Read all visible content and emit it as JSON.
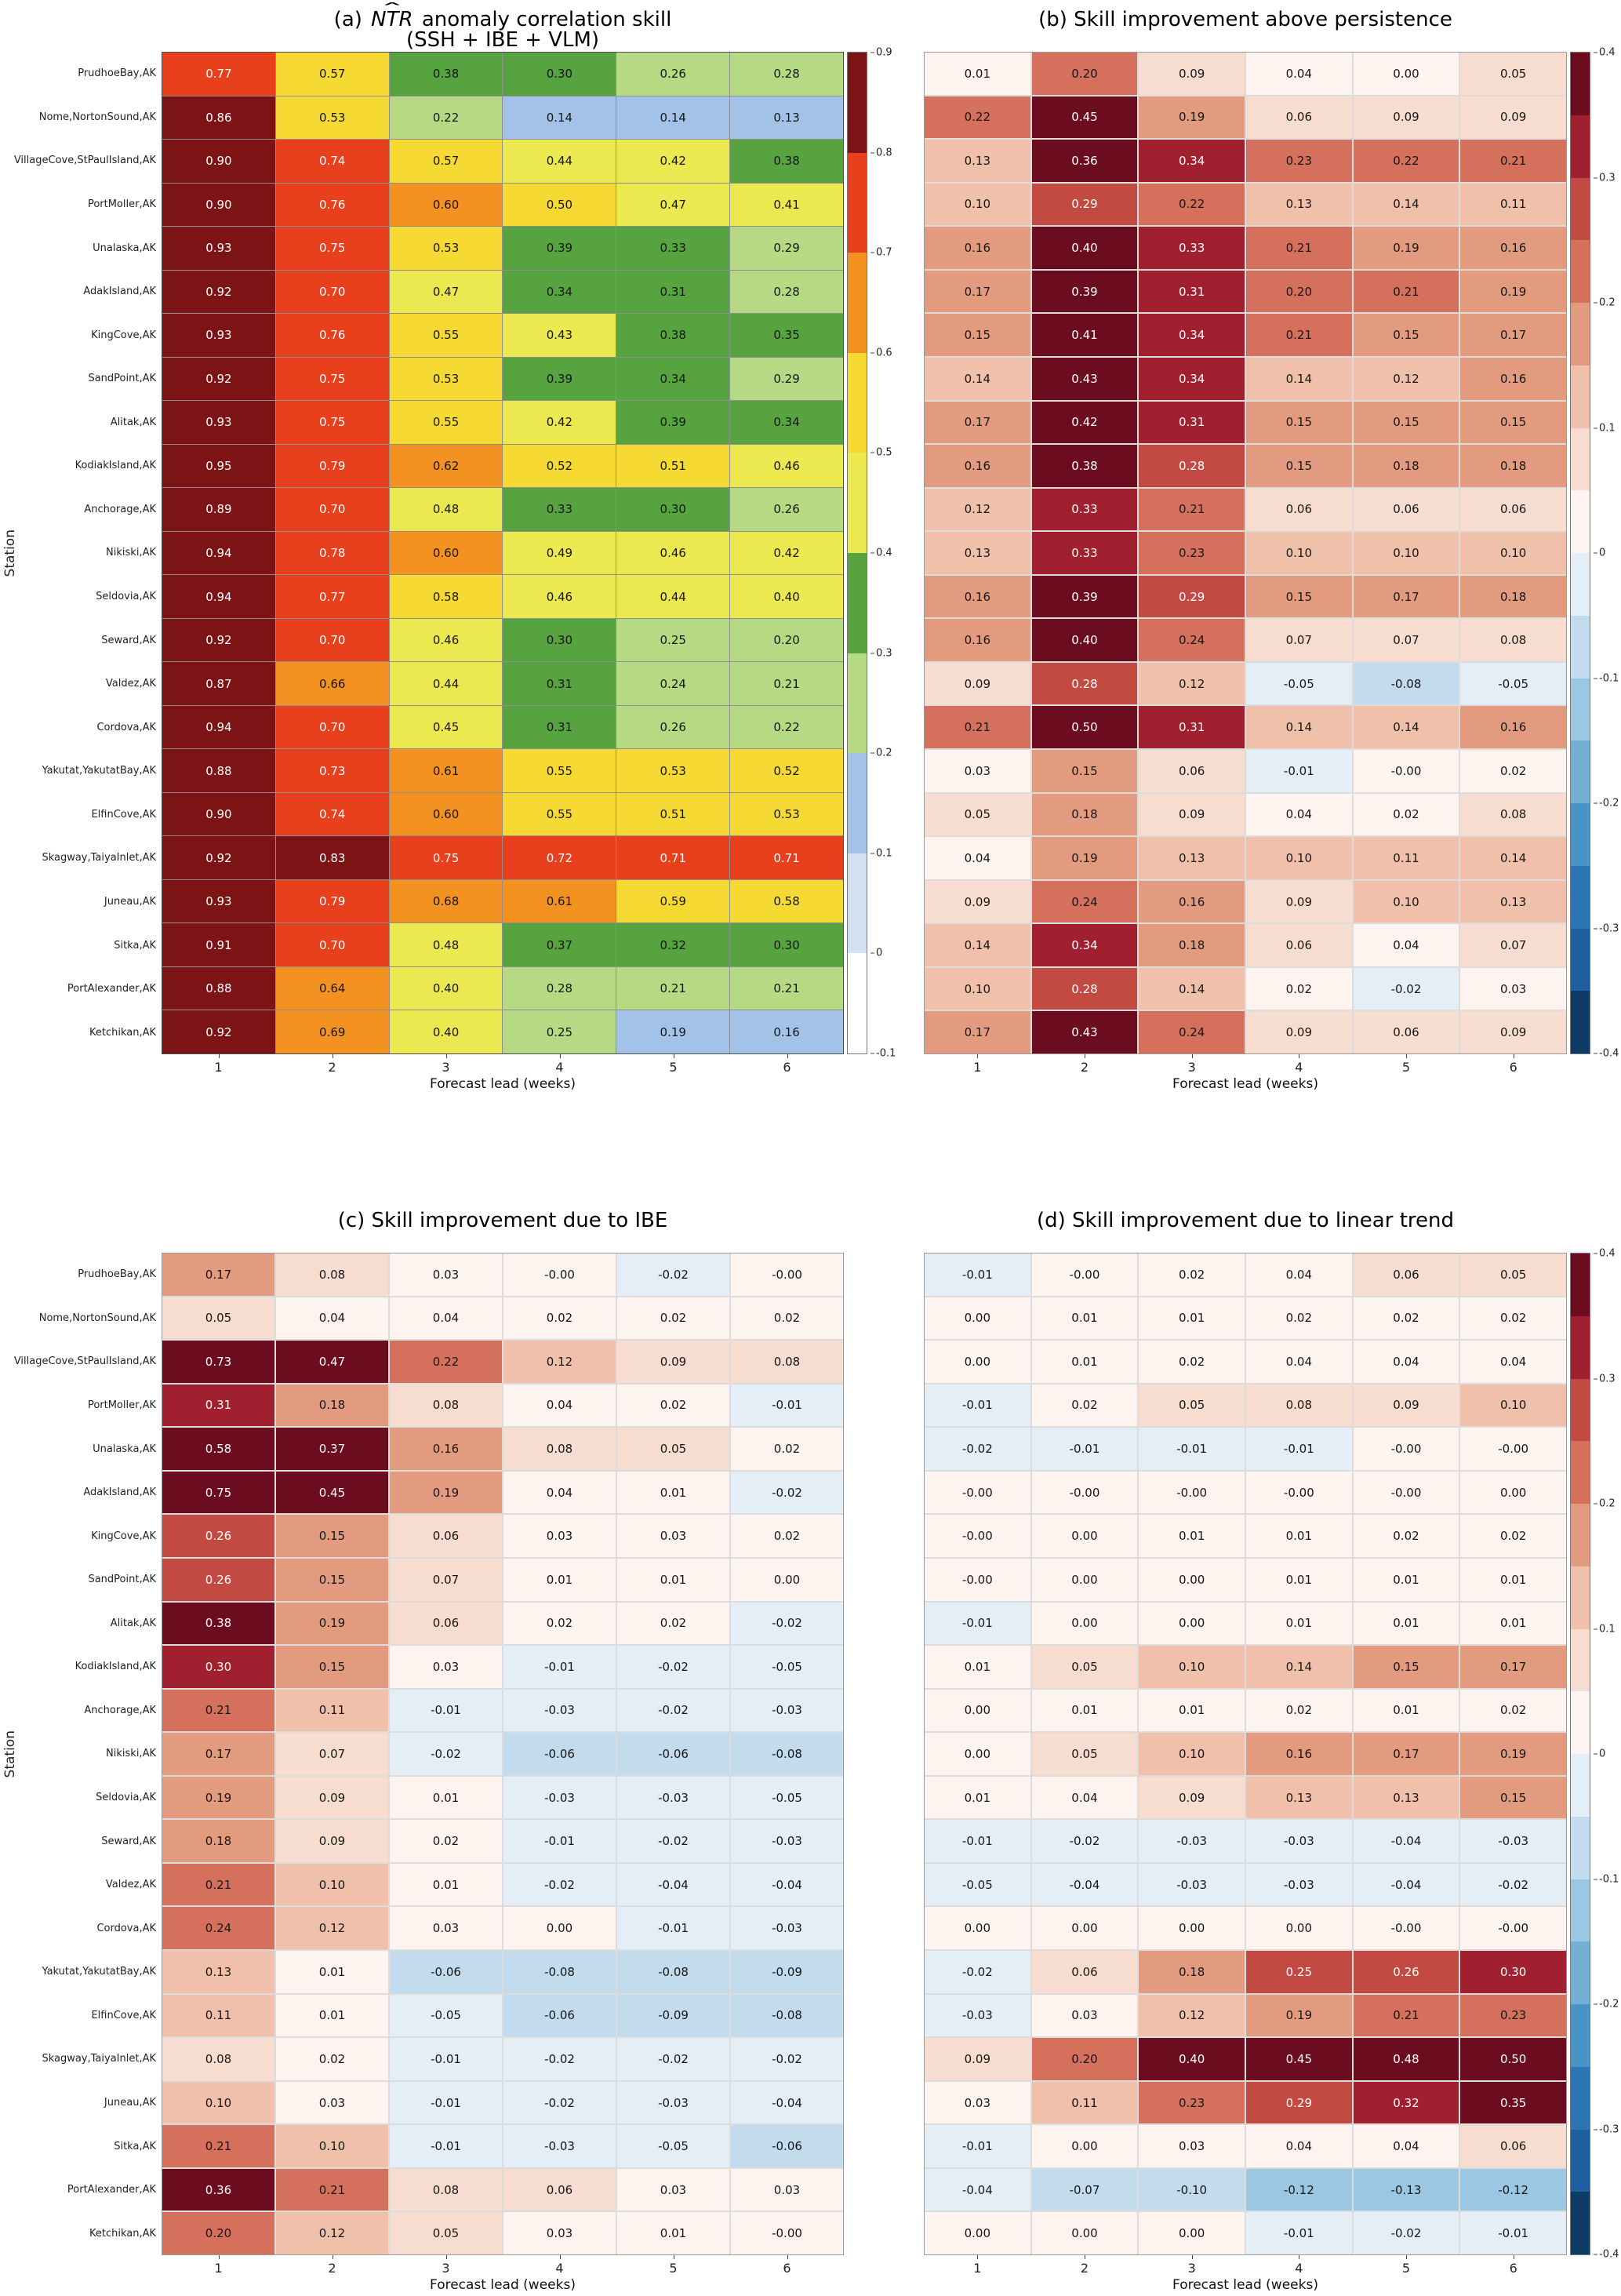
{
  "chart_data": {
    "type": "heatmap",
    "x": [
      "1",
      "2",
      "3",
      "4",
      "5",
      "6"
    ],
    "xlabel": "Forecast lead (weeks)",
    "ylabel": "Station",
    "stations": [
      "PrudhoeBay,AK",
      "Nome,NortonSound,AK",
      "VillageCove,StPaulIsland,AK",
      "PortMoller,AK",
      "Unalaska,AK",
      "AdakIsland,AK",
      "KingCove,AK",
      "SandPoint,AK",
      "Alitak,AK",
      "KodiakIsland,AK",
      "Anchorage,AK",
      "Nikiski,AK",
      "Seldovia,AK",
      "Seward,AK",
      "Valdez,AK",
      "Cordova,AK",
      "Yakutat,YakutatBay,AK",
      "ElfinCove,AK",
      "Skagway,TaiyaInlet,AK",
      "Juneau,AK",
      "Sitka,AK",
      "PortAlexander,AK",
      "Ketchikan,AK"
    ],
    "palettes": {
      "skill": {
        "vmin": -0.1,
        "step": 0.1,
        "colors": [
          "#ffffff",
          "#d3e1f3",
          "#a3c2e8",
          "#b6d983",
          "#56a33f",
          "#ece850",
          "#f6d932",
          "#f39121",
          "#e83f1d",
          "#7c1416"
        ]
      },
      "diverging": {
        "vmin": -0.4,
        "step": 0.05,
        "colors": [
          "#0d3b66",
          "#1f5fa0",
          "#2e75b5",
          "#4a93c8",
          "#74afd4",
          "#9cc7e2",
          "#c2dcee",
          "#e3eef7",
          "#fdf4ef",
          "#f6ddd0",
          "#f0c0ab",
          "#e39b80",
          "#d4705c",
          "#c24a42",
          "#a02030",
          "#6b0d1e"
        ]
      }
    },
    "panels": [
      {
        "id": "a",
        "title_prefix": "(a) ",
        "title_math": "NTR",
        "title_suffix": " anomaly correlation skill",
        "subtitle": "(SSH + IBE + VLM)",
        "cmap": "skill",
        "colorbar": true,
        "cbar_ticks": [
          "0.9",
          "0.8",
          "0.7",
          "0.6",
          "0.5",
          "0.4",
          "0.3",
          "0.2",
          "0.1",
          "0",
          "-0.1"
        ],
        "values": [
          [
            "0.77",
            "0.57",
            "0.38",
            "0.30",
            "0.26",
            "0.28"
          ],
          [
            "0.86",
            "0.53",
            "0.22",
            "0.14",
            "0.14",
            "0.13"
          ],
          [
            "0.90",
            "0.74",
            "0.57",
            "0.44",
            "0.42",
            "0.38"
          ],
          [
            "0.90",
            "0.76",
            "0.60",
            "0.50",
            "0.47",
            "0.41"
          ],
          [
            "0.93",
            "0.75",
            "0.53",
            "0.39",
            "0.33",
            "0.29"
          ],
          [
            "0.92",
            "0.70",
            "0.47",
            "0.34",
            "0.31",
            "0.28"
          ],
          [
            "0.93",
            "0.76",
            "0.55",
            "0.43",
            "0.38",
            "0.35"
          ],
          [
            "0.92",
            "0.75",
            "0.53",
            "0.39",
            "0.34",
            "0.29"
          ],
          [
            "0.93",
            "0.75",
            "0.55",
            "0.42",
            "0.39",
            "0.34"
          ],
          [
            "0.95",
            "0.79",
            "0.62",
            "0.52",
            "0.51",
            "0.46"
          ],
          [
            "0.89",
            "0.70",
            "0.48",
            "0.33",
            "0.30",
            "0.26"
          ],
          [
            "0.94",
            "0.78",
            "0.60",
            "0.49",
            "0.46",
            "0.42"
          ],
          [
            "0.94",
            "0.77",
            "0.58",
            "0.46",
            "0.44",
            "0.40"
          ],
          [
            "0.92",
            "0.70",
            "0.46",
            "0.30",
            "0.25",
            "0.20"
          ],
          [
            "0.87",
            "0.66",
            "0.44",
            "0.31",
            "0.24",
            "0.21"
          ],
          [
            "0.94",
            "0.70",
            "0.45",
            "0.31",
            "0.26",
            "0.22"
          ],
          [
            "0.88",
            "0.73",
            "0.61",
            "0.55",
            "0.53",
            "0.52"
          ],
          [
            "0.90",
            "0.74",
            "0.60",
            "0.55",
            "0.51",
            "0.53"
          ],
          [
            "0.92",
            "0.83",
            "0.75",
            "0.72",
            "0.71",
            "0.71"
          ],
          [
            "0.93",
            "0.79",
            "0.68",
            "0.61",
            "0.59",
            "0.58"
          ],
          [
            "0.91",
            "0.70",
            "0.48",
            "0.37",
            "0.32",
            "0.30"
          ],
          [
            "0.88",
            "0.64",
            "0.40",
            "0.28",
            "0.21",
            "0.21"
          ],
          [
            "0.92",
            "0.69",
            "0.40",
            "0.25",
            "0.19",
            "0.16"
          ]
        ]
      },
      {
        "id": "b",
        "title": "(b) Skill improvement above persistence",
        "cmap": "diverging",
        "colorbar": true,
        "cbar_ticks": [
          "0.4",
          "0.3",
          "0.2",
          "0.1",
          "0",
          "-0.1",
          "-0.2",
          "-0.3",
          "-0.4"
        ],
        "values": [
          [
            "0.01",
            "0.20",
            "0.09",
            "0.04",
            "0.00",
            "0.05"
          ],
          [
            "0.22",
            "0.45",
            "0.19",
            "0.06",
            "0.09",
            "0.09"
          ],
          [
            "0.13",
            "0.36",
            "0.34",
            "0.23",
            "0.22",
            "0.21"
          ],
          [
            "0.10",
            "0.29",
            "0.22",
            "0.13",
            "0.14",
            "0.11"
          ],
          [
            "0.16",
            "0.40",
            "0.33",
            "0.21",
            "0.19",
            "0.16"
          ],
          [
            "0.17",
            "0.39",
            "0.31",
            "0.20",
            "0.21",
            "0.19"
          ],
          [
            "0.15",
            "0.41",
            "0.34",
            "0.21",
            "0.15",
            "0.17"
          ],
          [
            "0.14",
            "0.43",
            "0.34",
            "0.14",
            "0.12",
            "0.16"
          ],
          [
            "0.17",
            "0.42",
            "0.31",
            "0.15",
            "0.15",
            "0.15"
          ],
          [
            "0.16",
            "0.38",
            "0.28",
            "0.15",
            "0.18",
            "0.18"
          ],
          [
            "0.12",
            "0.33",
            "0.21",
            "0.06",
            "0.06",
            "0.06"
          ],
          [
            "0.13",
            "0.33",
            "0.23",
            "0.10",
            "0.10",
            "0.10"
          ],
          [
            "0.16",
            "0.39",
            "0.29",
            "0.15",
            "0.17",
            "0.18"
          ],
          [
            "0.16",
            "0.40",
            "0.24",
            "0.07",
            "0.07",
            "0.08"
          ],
          [
            "0.09",
            "0.28",
            "0.12",
            "-0.05",
            "-0.08",
            "-0.05"
          ],
          [
            "0.21",
            "0.50",
            "0.31",
            "0.14",
            "0.14",
            "0.16"
          ],
          [
            "0.03",
            "0.15",
            "0.06",
            "-0.01",
            "-0.00",
            "0.02"
          ],
          [
            "0.05",
            "0.18",
            "0.09",
            "0.04",
            "0.02",
            "0.08"
          ],
          [
            "0.04",
            "0.19",
            "0.13",
            "0.10",
            "0.11",
            "0.14"
          ],
          [
            "0.09",
            "0.24",
            "0.16",
            "0.09",
            "0.10",
            "0.13"
          ],
          [
            "0.14",
            "0.34",
            "0.18",
            "0.06",
            "0.04",
            "0.07"
          ],
          [
            "0.10",
            "0.28",
            "0.14",
            "0.02",
            "-0.02",
            "0.03"
          ],
          [
            "0.17",
            "0.43",
            "0.24",
            "0.09",
            "0.06",
            "0.09"
          ]
        ]
      },
      {
        "id": "c",
        "title": "(c) Skill improvement due to IBE",
        "cmap": "diverging",
        "colorbar": false,
        "cbar_ticks": [],
        "values": [
          [
            "0.17",
            "0.08",
            "0.03",
            "-0.00",
            "-0.02",
            "-0.00"
          ],
          [
            "0.05",
            "0.04",
            "0.04",
            "0.02",
            "0.02",
            "0.02"
          ],
          [
            "0.73",
            "0.47",
            "0.22",
            "0.12",
            "0.09",
            "0.08"
          ],
          [
            "0.31",
            "0.18",
            "0.08",
            "0.04",
            "0.02",
            "-0.01"
          ],
          [
            "0.58",
            "0.37",
            "0.16",
            "0.08",
            "0.05",
            "0.02"
          ],
          [
            "0.75",
            "0.45",
            "0.19",
            "0.04",
            "0.01",
            "-0.02"
          ],
          [
            "0.26",
            "0.15",
            "0.06",
            "0.03",
            "0.03",
            "0.02"
          ],
          [
            "0.26",
            "0.15",
            "0.07",
            "0.01",
            "0.01",
            "0.00"
          ],
          [
            "0.38",
            "0.19",
            "0.06",
            "0.02",
            "0.02",
            "-0.02"
          ],
          [
            "0.30",
            "0.15",
            "0.03",
            "-0.01",
            "-0.02",
            "-0.05"
          ],
          [
            "0.21",
            "0.11",
            "-0.01",
            "-0.03",
            "-0.02",
            "-0.03"
          ],
          [
            "0.17",
            "0.07",
            "-0.02",
            "-0.06",
            "-0.06",
            "-0.08"
          ],
          [
            "0.19",
            "0.09",
            "0.01",
            "-0.03",
            "-0.03",
            "-0.05"
          ],
          [
            "0.18",
            "0.09",
            "0.02",
            "-0.01",
            "-0.02",
            "-0.03"
          ],
          [
            "0.21",
            "0.10",
            "0.01",
            "-0.02",
            "-0.04",
            "-0.04"
          ],
          [
            "0.24",
            "0.12",
            "0.03",
            "0.00",
            "-0.01",
            "-0.03"
          ],
          [
            "0.13",
            "0.01",
            "-0.06",
            "-0.08",
            "-0.08",
            "-0.09"
          ],
          [
            "0.11",
            "0.01",
            "-0.05",
            "-0.06",
            "-0.09",
            "-0.08"
          ],
          [
            "0.08",
            "0.02",
            "-0.01",
            "-0.02",
            "-0.02",
            "-0.02"
          ],
          [
            "0.10",
            "0.03",
            "-0.01",
            "-0.02",
            "-0.03",
            "-0.04"
          ],
          [
            "0.21",
            "0.10",
            "-0.01",
            "-0.03",
            "-0.05",
            "-0.06"
          ],
          [
            "0.36",
            "0.21",
            "0.08",
            "0.06",
            "0.03",
            "0.03"
          ],
          [
            "0.20",
            "0.12",
            "0.05",
            "0.03",
            "0.01",
            "-0.00"
          ]
        ]
      },
      {
        "id": "d",
        "title": "(d) Skill improvement due to linear trend",
        "cmap": "diverging",
        "colorbar": true,
        "cbar_ticks": [
          "0.4",
          "0.3",
          "0.2",
          "0.1",
          "0",
          "-0.1",
          "-0.2",
          "-0.3",
          "-0.4"
        ],
        "values": [
          [
            "-0.01",
            "-0.00",
            "0.02",
            "0.04",
            "0.06",
            "0.05"
          ],
          [
            "0.00",
            "0.01",
            "0.01",
            "0.02",
            "0.02",
            "0.02"
          ],
          [
            "0.00",
            "0.01",
            "0.02",
            "0.04",
            "0.04",
            "0.04"
          ],
          [
            "-0.01",
            "0.02",
            "0.05",
            "0.08",
            "0.09",
            "0.10"
          ],
          [
            "-0.02",
            "-0.01",
            "-0.01",
            "-0.01",
            "-0.00",
            "-0.00"
          ],
          [
            "-0.00",
            "-0.00",
            "-0.00",
            "-0.00",
            "-0.00",
            "0.00"
          ],
          [
            "-0.00",
            "0.00",
            "0.01",
            "0.01",
            "0.02",
            "0.02"
          ],
          [
            "-0.00",
            "0.00",
            "0.00",
            "0.01",
            "0.01",
            "0.01"
          ],
          [
            "-0.01",
            "0.00",
            "0.00",
            "0.01",
            "0.01",
            "0.01"
          ],
          [
            "0.01",
            "0.05",
            "0.10",
            "0.14",
            "0.15",
            "0.17"
          ],
          [
            "0.00",
            "0.01",
            "0.01",
            "0.02",
            "0.01",
            "0.02"
          ],
          [
            "0.00",
            "0.05",
            "0.10",
            "0.16",
            "0.17",
            "0.19"
          ],
          [
            "0.01",
            "0.04",
            "0.09",
            "0.13",
            "0.13",
            "0.15"
          ],
          [
            "-0.01",
            "-0.02",
            "-0.03",
            "-0.03",
            "-0.04",
            "-0.03"
          ],
          [
            "-0.05",
            "-0.04",
            "-0.03",
            "-0.03",
            "-0.04",
            "-0.02"
          ],
          [
            "0.00",
            "0.00",
            "0.00",
            "0.00",
            "-0.00",
            "-0.00"
          ],
          [
            "-0.02",
            "0.06",
            "0.18",
            "0.25",
            "0.26",
            "0.30"
          ],
          [
            "-0.03",
            "0.03",
            "0.12",
            "0.19",
            "0.21",
            "0.23"
          ],
          [
            "0.09",
            "0.20",
            "0.40",
            "0.45",
            "0.48",
            "0.50"
          ],
          [
            "0.03",
            "0.11",
            "0.23",
            "0.29",
            "0.32",
            "0.35"
          ],
          [
            "-0.01",
            "0.00",
            "0.03",
            "0.04",
            "0.04",
            "0.06"
          ],
          [
            "-0.04",
            "-0.07",
            "-0.10",
            "-0.12",
            "-0.13",
            "-0.12"
          ],
          [
            "0.00",
            "0.00",
            "0.00",
            "-0.01",
            "-0.02",
            "-0.01"
          ]
        ]
      }
    ]
  }
}
